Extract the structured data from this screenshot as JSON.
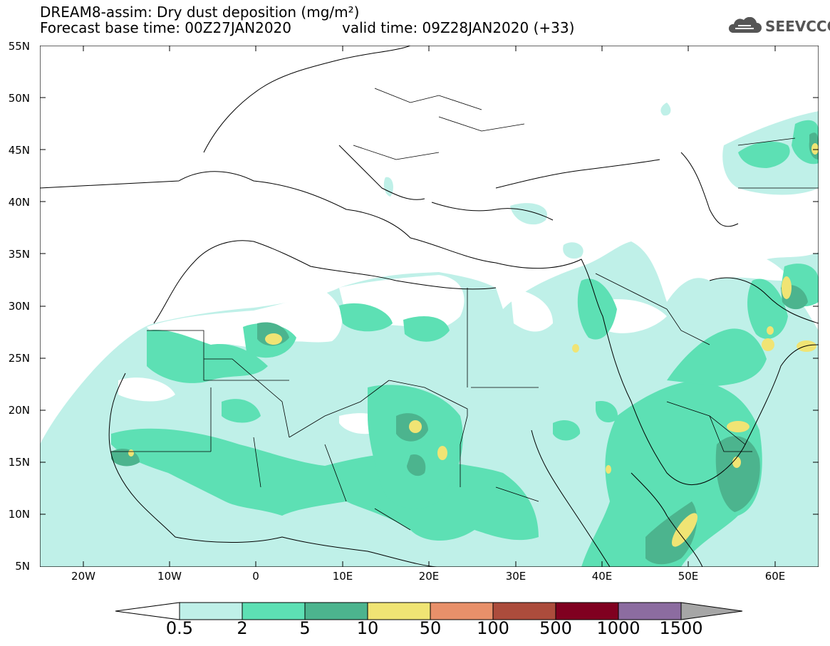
{
  "header": {
    "title_line1": "DREAM8-assim: Dry dust deposition (mg/m²)",
    "title_line2": "Forecast base time: 00Z27JAN2020",
    "valid_time": "valid time: 09Z28JAN2020 (+33)",
    "logo_text": "SEEVCCC"
  },
  "map": {
    "lat_labels": [
      "55N",
      "50N",
      "45N",
      "40N",
      "35N",
      "30N",
      "25N",
      "20N",
      "15N",
      "10N",
      "5N"
    ],
    "lon_labels": [
      "20W",
      "10W",
      "0",
      "10E",
      "20E",
      "30E",
      "40E",
      "50E",
      "60E"
    ],
    "colors": {
      "c1": "#bff0e8",
      "c2": "#5de0b4",
      "c3": "#4cb48e",
      "c4": "#f0e474",
      "c5": "#e8906a",
      "c6": "#ac4c3c",
      "c7": "#800020",
      "c8": "#8c6ca0",
      "over": "#a6a6a6"
    }
  },
  "colorbar": {
    "labels": [
      "0.5",
      "2",
      "5",
      "10",
      "50",
      "100",
      "500",
      "1000",
      "1500"
    ]
  }
}
